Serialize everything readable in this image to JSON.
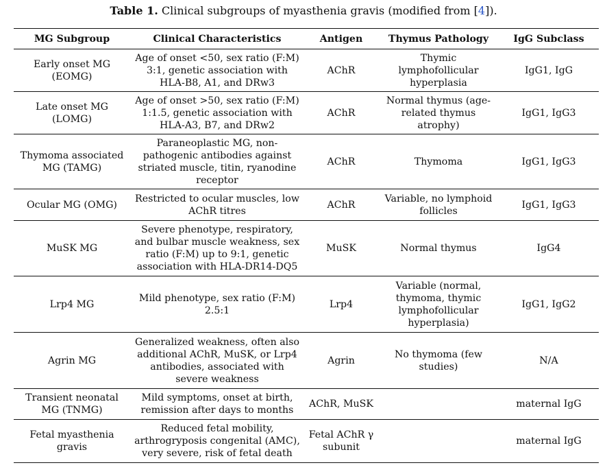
{
  "caption": {
    "label": "Table 1.",
    "text_before": "Clinical subgroups of myasthenia gravis (modified from [",
    "ref": "4",
    "text_after": "])."
  },
  "headers": [
    "MG Subgroup",
    "Clinical Characteristics",
    "Antigen",
    "Thymus Pathology",
    "IgG Subclass"
  ],
  "rows": [
    {
      "subgroup": "Early onset MG (EOMG)",
      "characteristics": "Age of onset <50, sex ratio (F:M) 3:1, genetic association with HLA-B8, A1, and DRw3",
      "antigen": "AChR",
      "thymus": "Thymic lymphofollicular hyperplasia",
      "igg": "IgG1, IgG"
    },
    {
      "subgroup": "Late onset MG (LOMG)",
      "characteristics": "Age of onset >50, sex ratio (F:M) 1:1.5, genetic association with HLA-A3, B7, and DRw2",
      "antigen": "AChR",
      "thymus": "Normal thymus (age-related thymus atrophy)",
      "igg": "IgG1, IgG3"
    },
    {
      "subgroup": "Thymoma associated MG (TAMG)",
      "characteristics": "Paraneoplastic MG, non-pathogenic antibodies against striated muscle, titin, ryanodine receptor",
      "antigen": "AChR",
      "thymus": "Thymoma",
      "igg": "IgG1, IgG3"
    },
    {
      "subgroup": "Ocular MG (OMG)",
      "characteristics": "Restricted to ocular muscles, low AChR titres",
      "antigen": "AChR",
      "thymus": "Variable, no lymphoid follicles",
      "igg": "IgG1, IgG3"
    },
    {
      "subgroup": "MuSK MG",
      "characteristics": "Severe phenotype, respiratory, and bulbar muscle weakness, sex ratio (F:M) up to 9:1, genetic association with HLA-DR14-DQ5",
      "antigen": "MuSK",
      "thymus": "Normal thymus",
      "igg": "IgG4"
    },
    {
      "subgroup": "Lrp4 MG",
      "characteristics": "Mild phenotype, sex ratio (F:M) 2.5:1",
      "antigen": "Lrp4",
      "thymus": "Variable (normal, thymoma, thymic lymphofollicular hyperplasia)",
      "igg": "IgG1, IgG2"
    },
    {
      "subgroup": "Agrin MG",
      "characteristics": "Generalized weakness, often also additional AChR, MuSK, or Lrp4 antibodies, associated with severe weakness",
      "antigen": "Agrin",
      "thymus": "No thymoma (few studies)",
      "igg": "N/A"
    },
    {
      "subgroup": "Transient neonatal MG (TNMG)",
      "characteristics": "Mild symptoms, onset at birth, remission after days to months",
      "antigen": "AChR, MuSK",
      "thymus": "",
      "igg": "maternal IgG"
    },
    {
      "subgroup": "Fetal myasthenia gravis",
      "characteristics": "Reduced fetal mobility, arthrogryposis congenital (AMC), very severe, risk of fetal death",
      "antigen": "Fetal AChR γ subunit",
      "thymus": "",
      "igg": "maternal IgG"
    }
  ]
}
